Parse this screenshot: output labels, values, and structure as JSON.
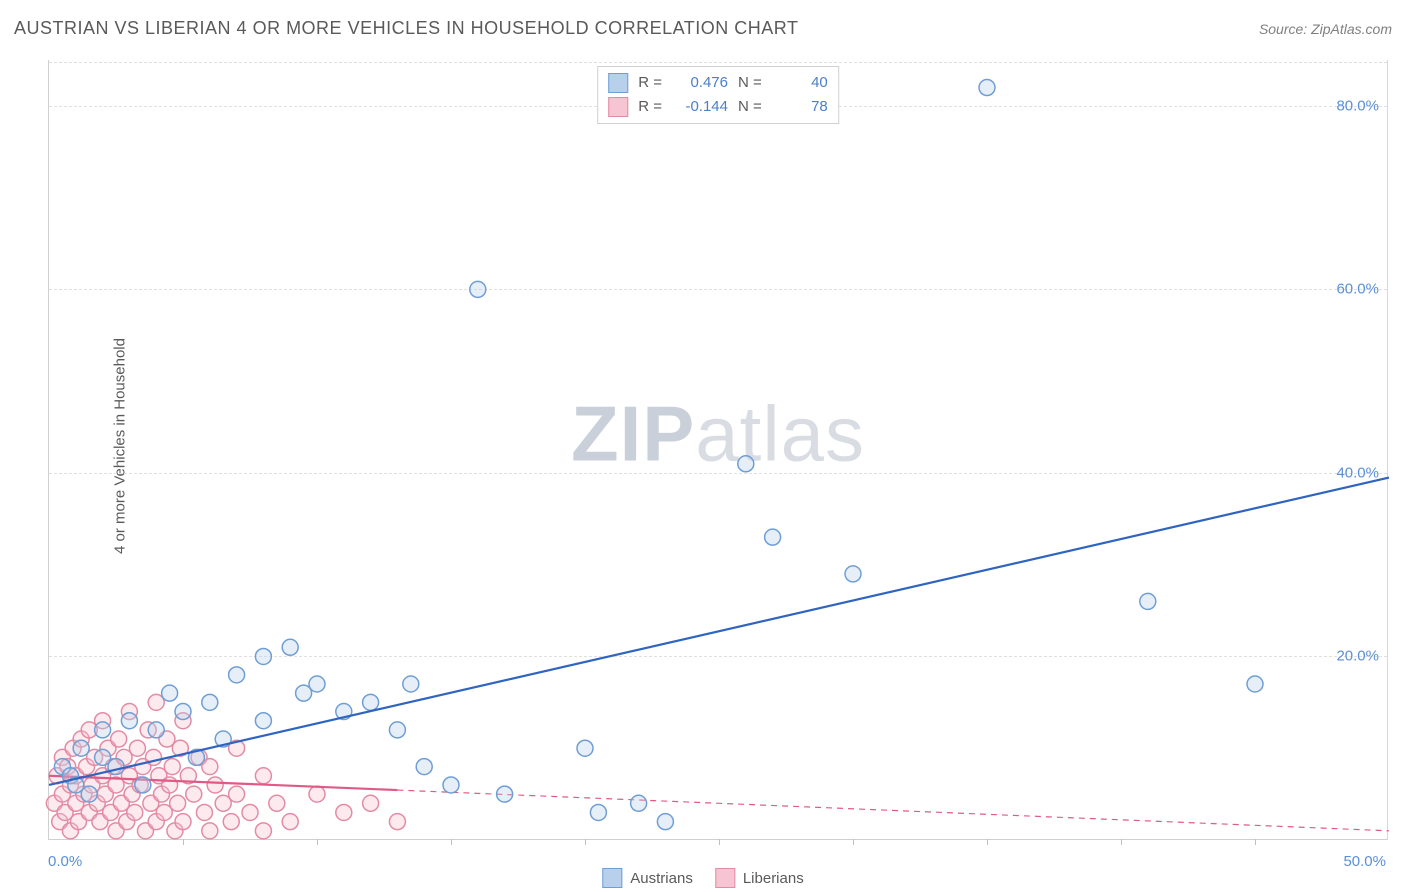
{
  "title": "AUSTRIAN VS LIBERIAN 4 OR MORE VEHICLES IN HOUSEHOLD CORRELATION CHART",
  "source": "Source: ZipAtlas.com",
  "y_axis_label": "4 or more Vehicles in Household",
  "watermark_zip": "ZIP",
  "watermark_atlas": "atlas",
  "chart": {
    "type": "scatter",
    "xlim": [
      0,
      50
    ],
    "ylim": [
      0,
      85
    ],
    "x_tick_min": "0.0%",
    "x_tick_max": "50.0%",
    "x_minor_tick_step": 5,
    "y_ticks": [
      {
        "v": 20,
        "label": "20.0%"
      },
      {
        "v": 40,
        "label": "40.0%"
      },
      {
        "v": 60,
        "label": "60.0%"
      },
      {
        "v": 80,
        "label": "80.0%"
      }
    ],
    "background_color": "#ffffff",
    "grid_color": "#e0e0e0",
    "marker_radius": 8,
    "marker_stroke_width": 1.5,
    "marker_fill_opacity": 0.35,
    "trend_line_width": 2.2,
    "series": [
      {
        "name": "Austrians",
        "color_stroke": "#6f9ed6",
        "color_fill": "#b8d0ec",
        "trend_color": "#2f64c0",
        "trend_dash": "none",
        "correlation_R": "0.476",
        "N": "40",
        "trend": {
          "x1": 0,
          "y1": 6.0,
          "x2": 50,
          "y2": 39.5
        },
        "points": [
          [
            0.5,
            8
          ],
          [
            0.8,
            7
          ],
          [
            1,
            6
          ],
          [
            1.2,
            10
          ],
          [
            1.5,
            5
          ],
          [
            2,
            9
          ],
          [
            2,
            12
          ],
          [
            2.5,
            8
          ],
          [
            3,
            13
          ],
          [
            3.5,
            6
          ],
          [
            4,
            12
          ],
          [
            4.5,
            16
          ],
          [
            5,
            14
          ],
          [
            5.5,
            9
          ],
          [
            6,
            15
          ],
          [
            6.5,
            11
          ],
          [
            7,
            18
          ],
          [
            8,
            20
          ],
          [
            8,
            13
          ],
          [
            9,
            21
          ],
          [
            9.5,
            16
          ],
          [
            10,
            17
          ],
          [
            11,
            14
          ],
          [
            12,
            15
          ],
          [
            13,
            12
          ],
          [
            13.5,
            17
          ],
          [
            14,
            8
          ],
          [
            15,
            6
          ],
          [
            16,
            60
          ],
          [
            17,
            5
          ],
          [
            20,
            10
          ],
          [
            20.5,
            3
          ],
          [
            22,
            4
          ],
          [
            23,
            2
          ],
          [
            26,
            41
          ],
          [
            27,
            33
          ],
          [
            30,
            29
          ],
          [
            35,
            82
          ],
          [
            41,
            26
          ],
          [
            45,
            17
          ]
        ]
      },
      {
        "name": "Liberians",
        "color_stroke": "#e48ba4",
        "color_fill": "#f6c4d2",
        "trend_color": "#e05a87",
        "trend_dash": "6 5",
        "correlation_R": "-0.144",
        "N": "78",
        "trend_solid_until_x": 13,
        "trend": {
          "x1": 0,
          "y1": 7.0,
          "x2": 50,
          "y2": 1.0
        },
        "points": [
          [
            0.2,
            4
          ],
          [
            0.3,
            7
          ],
          [
            0.4,
            2
          ],
          [
            0.5,
            9
          ],
          [
            0.5,
            5
          ],
          [
            0.6,
            3
          ],
          [
            0.7,
            8
          ],
          [
            0.8,
            6
          ],
          [
            0.8,
            1
          ],
          [
            0.9,
            10
          ],
          [
            1,
            4
          ],
          [
            1,
            7
          ],
          [
            1.1,
            2
          ],
          [
            1.2,
            11
          ],
          [
            1.3,
            5
          ],
          [
            1.4,
            8
          ],
          [
            1.5,
            3
          ],
          [
            1.5,
            12
          ],
          [
            1.6,
            6
          ],
          [
            1.7,
            9
          ],
          [
            1.8,
            4
          ],
          [
            1.9,
            2
          ],
          [
            2,
            13
          ],
          [
            2,
            7
          ],
          [
            2.1,
            5
          ],
          [
            2.2,
            10
          ],
          [
            2.3,
            3
          ],
          [
            2.4,
            8
          ],
          [
            2.5,
            6
          ],
          [
            2.5,
            1
          ],
          [
            2.6,
            11
          ],
          [
            2.7,
            4
          ],
          [
            2.8,
            9
          ],
          [
            2.9,
            2
          ],
          [
            3,
            14
          ],
          [
            3,
            7
          ],
          [
            3.1,
            5
          ],
          [
            3.2,
            3
          ],
          [
            3.3,
            10
          ],
          [
            3.4,
            6
          ],
          [
            3.5,
            8
          ],
          [
            3.6,
            1
          ],
          [
            3.7,
            12
          ],
          [
            3.8,
            4
          ],
          [
            3.9,
            9
          ],
          [
            4,
            2
          ],
          [
            4,
            15
          ],
          [
            4.1,
            7
          ],
          [
            4.2,
            5
          ],
          [
            4.3,
            3
          ],
          [
            4.4,
            11
          ],
          [
            4.5,
            6
          ],
          [
            4.6,
            8
          ],
          [
            4.7,
            1
          ],
          [
            4.8,
            4
          ],
          [
            4.9,
            10
          ],
          [
            5,
            2
          ],
          [
            5,
            13
          ],
          [
            5.2,
            7
          ],
          [
            5.4,
            5
          ],
          [
            5.6,
            9
          ],
          [
            5.8,
            3
          ],
          [
            6,
            8
          ],
          [
            6,
            1
          ],
          [
            6.2,
            6
          ],
          [
            6.5,
            4
          ],
          [
            6.8,
            2
          ],
          [
            7,
            10
          ],
          [
            7,
            5
          ],
          [
            7.5,
            3
          ],
          [
            8,
            7
          ],
          [
            8,
            1
          ],
          [
            8.5,
            4
          ],
          [
            9,
            2
          ],
          [
            10,
            5
          ],
          [
            11,
            3
          ],
          [
            12,
            4
          ],
          [
            13,
            2
          ]
        ]
      }
    ]
  },
  "legend_top": {
    "R_label": "R =",
    "N_label": "N ="
  },
  "legend_bottom": {
    "label_a": "Austrians",
    "label_b": "Liberians"
  }
}
